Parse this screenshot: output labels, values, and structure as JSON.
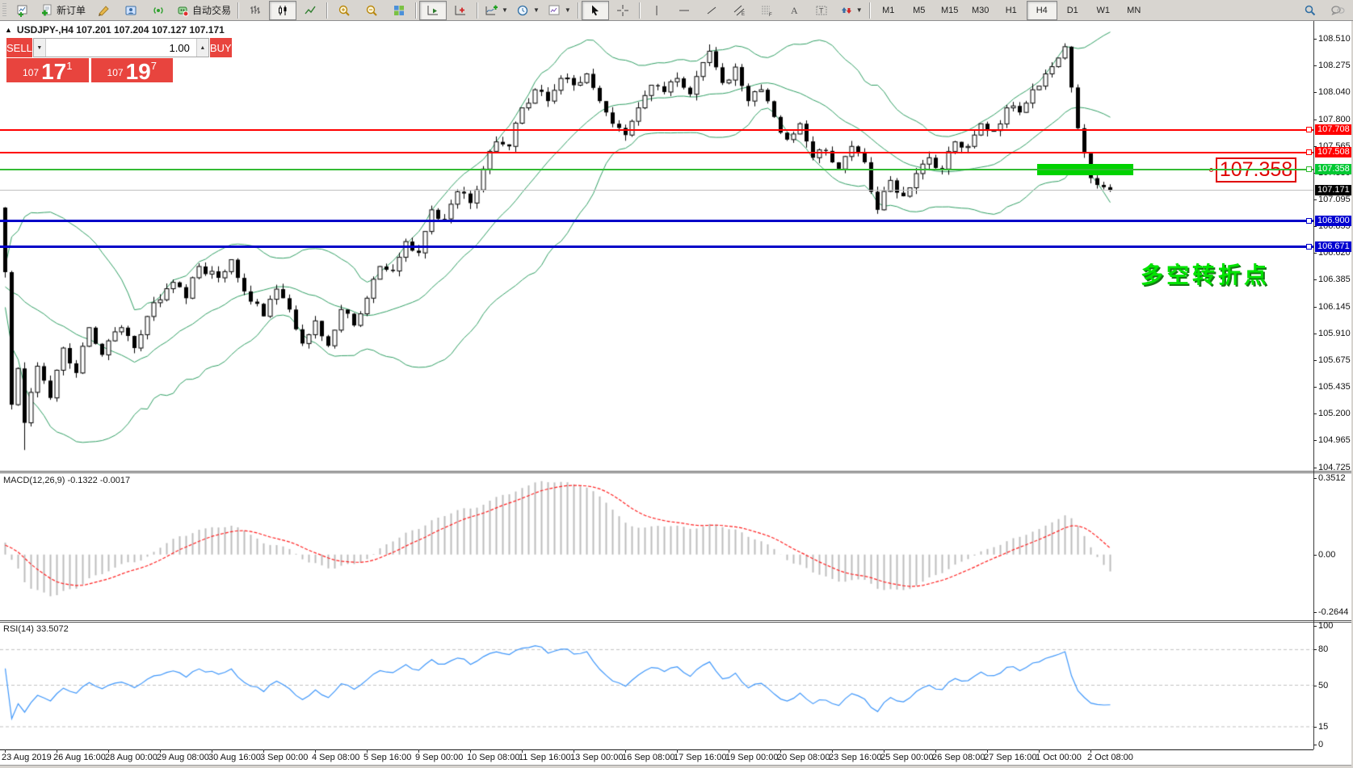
{
  "toolbar": {
    "new_order_label": "新订单",
    "autotrading_label": "自动交易",
    "timeframes": [
      "M1",
      "M5",
      "M15",
      "M30",
      "H1",
      "H4",
      "D1",
      "W1",
      "MN"
    ],
    "active_timeframe": "H4",
    "icons": [
      "new-chart-icon",
      "new-order-icon",
      "profiles-icon",
      "market-watch-icon",
      "signals-icon",
      "autotrading-icon",
      "bar-chart-icon",
      "candlestick-chart-icon",
      "line-chart-icon",
      "zoom-in-icon",
      "zoom-out-icon",
      "tile-windows-icon",
      "auto-scroll-icon",
      "chart-shift-icon",
      "indicators-icon",
      "periods-clock-icon",
      "templates-icon",
      "cursor-icon",
      "crosshair-icon",
      "vertical-line-icon",
      "horizontal-line-icon",
      "trendline-icon",
      "equidistant-channel-icon",
      "fibonacci-icon",
      "text-icon",
      "text-label-icon",
      "arrows-icon",
      "search-icon",
      "chat-icon"
    ]
  },
  "chart": {
    "title": "USDJPY-,H4  107.201 107.204 107.127 107.171",
    "symbol": "USDJPY-",
    "period": "H4"
  },
  "trade_panel": {
    "sell_label": "SELL",
    "buy_label": "BUY",
    "volume": "1.00",
    "sell_small": "107",
    "sell_big": "17",
    "sell_sup": "1",
    "buy_small": "107",
    "buy_big": "19",
    "buy_sup": "7"
  },
  "indicators": {
    "macd_label": "MACD(12,26,9) -0.1322 -0.0017",
    "rsi_label": "RSI(14) 33.5072"
  },
  "annotations": {
    "price_callout": "107.358",
    "cn_note": "多空转折点"
  },
  "levels": [
    {
      "price": 107.708,
      "label": "107.708",
      "color": "#ff0000",
      "line": "#ff0000",
      "thick": 2,
      "marker": true
    },
    {
      "price": 107.508,
      "label": "107.508",
      "color": "#ff0000",
      "line": "#ff0000",
      "thick": 2,
      "marker": true
    },
    {
      "price": 107.358,
      "label": "107.358",
      "color": "#00c832",
      "line": "#33bb33",
      "thick": 2,
      "marker": true
    },
    {
      "price": 107.171,
      "label": "107.171",
      "color": "#000000",
      "line": "#c0c0c0",
      "thick": 1,
      "marker": false
    },
    {
      "price": 106.9,
      "label": "106.900",
      "color": "#0000d0",
      "line": "#0000c8",
      "thick": 3,
      "marker": true
    },
    {
      "price": 106.671,
      "label": "106.671",
      "color": "#0000d0",
      "line": "#0000c8",
      "thick": 3,
      "marker": true
    }
  ],
  "axes": {
    "price_ticks": [
      "108.510",
      "108.275",
      "108.040",
      "107.800",
      "107.565",
      "107.330",
      "107.095",
      "106.855",
      "106.620",
      "106.385",
      "106.145",
      "105.910",
      "105.675",
      "105.435",
      "105.200",
      "104.965",
      "104.725"
    ],
    "macd_ticks": [
      {
        "label": "0.3512",
        "v": 0.3512
      },
      {
        "label": "0.00",
        "v": 0
      },
      {
        "label": "-0.2644",
        "v": -0.2644
      }
    ],
    "rsi_ticks": [
      {
        "label": "100",
        "v": 100
      },
      {
        "label": "80",
        "v": 80
      },
      {
        "label": "50",
        "v": 50
      },
      {
        "label": "15",
        "v": 15
      },
      {
        "label": "0",
        "v": 0
      }
    ],
    "dates": [
      "23 Aug 2019",
      "26 Aug 16:00",
      "28 Aug 00:00",
      "29 Aug 08:00",
      "30 Aug 16:00",
      "3 Sep 00:00",
      "4 Sep 08:00",
      "5 Sep 16:00",
      "9 Sep 00:00",
      "10 Sep 08:00",
      "11 Sep 16:00",
      "13 Sep 00:00",
      "16 Sep 08:00",
      "17 Sep 16:00",
      "19 Sep 00:00",
      "20 Sep 08:00",
      "23 Sep 16:00",
      "25 Sep 00:00",
      "26 Sep 08:00",
      "27 Sep 16:00",
      "1 Oct 00:00",
      "2 Oct 08:00"
    ]
  },
  "chart_data": {
    "type": "candlestick+indicators",
    "symbol": "USDJPY",
    "period": "H4",
    "ohlc_current": {
      "open": 107.201,
      "high": 107.204,
      "low": 107.127,
      "close": 107.171
    },
    "ylim": [
      104.725,
      108.51
    ],
    "bars_total": 172,
    "price_anchors": [
      [
        0,
        106.45
      ],
      [
        1,
        105.28
      ],
      [
        2,
        105.6
      ],
      [
        3,
        105.12
      ],
      [
        5,
        105.62
      ],
      [
        7,
        105.34
      ],
      [
        9,
        105.78
      ],
      [
        11,
        105.56
      ],
      [
        13,
        105.96
      ],
      [
        15,
        105.72
      ],
      [
        18,
        105.96
      ],
      [
        20,
        105.78
      ],
      [
        23,
        106.18
      ],
      [
        26,
        106.36
      ],
      [
        28,
        106.22
      ],
      [
        30,
        106.5
      ],
      [
        33,
        106.4
      ],
      [
        35,
        106.56
      ],
      [
        37,
        106.28
      ],
      [
        40,
        106.06
      ],
      [
        42,
        106.3
      ],
      [
        44,
        106.12
      ],
      [
        46,
        105.82
      ],
      [
        48,
        106.02
      ],
      [
        50,
        105.8
      ],
      [
        52,
        106.12
      ],
      [
        54,
        105.98
      ],
      [
        56,
        106.22
      ],
      [
        58,
        106.5
      ],
      [
        60,
        106.46
      ],
      [
        62,
        106.72
      ],
      [
        64,
        106.62
      ],
      [
        66,
        107.0
      ],
      [
        68,
        106.92
      ],
      [
        70,
        107.16
      ],
      [
        72,
        107.06
      ],
      [
        74,
        107.36
      ],
      [
        76,
        107.6
      ],
      [
        78,
        107.56
      ],
      [
        80,
        107.9
      ],
      [
        82,
        108.06
      ],
      [
        84,
        107.96
      ],
      [
        86,
        108.16
      ],
      [
        88,
        108.1
      ],
      [
        90,
        108.2
      ],
      [
        92,
        107.96
      ],
      [
        94,
        107.76
      ],
      [
        96,
        107.66
      ],
      [
        98,
        107.9
      ],
      [
        100,
        108.1
      ],
      [
        102,
        108.04
      ],
      [
        104,
        108.16
      ],
      [
        106,
        108.02
      ],
      [
        108,
        108.3
      ],
      [
        109,
        108.4
      ],
      [
        111,
        108.12
      ],
      [
        113,
        108.26
      ],
      [
        115,
        107.96
      ],
      [
        117,
        108.06
      ],
      [
        119,
        107.82
      ],
      [
        121,
        107.62
      ],
      [
        123,
        107.76
      ],
      [
        125,
        107.46
      ],
      [
        127,
        107.52
      ],
      [
        129,
        107.36
      ],
      [
        131,
        107.56
      ],
      [
        133,
        107.42
      ],
      [
        134,
        107.16
      ],
      [
        135,
        107.0
      ],
      [
        137,
        107.26
      ],
      [
        139,
        107.12
      ],
      [
        141,
        107.32
      ],
      [
        143,
        107.46
      ],
      [
        145,
        107.36
      ],
      [
        147,
        107.6
      ],
      [
        149,
        107.56
      ],
      [
        151,
        107.76
      ],
      [
        153,
        107.7
      ],
      [
        155,
        107.9
      ],
      [
        157,
        107.86
      ],
      [
        159,
        108.06
      ],
      [
        161,
        108.2
      ],
      [
        163,
        108.34
      ],
      [
        164,
        108.44
      ],
      [
        165,
        108.08
      ],
      [
        166,
        107.72
      ],
      [
        167,
        107.5
      ],
      [
        168,
        107.28
      ],
      [
        169,
        107.22
      ],
      [
        170,
        107.2
      ],
      [
        171,
        107.171
      ]
    ],
    "open_overrides": {
      "0": 107.02
    },
    "low_overrides": {
      "3": 104.88
    },
    "high_overrides": {
      "109": 108.46,
      "164": 108.47
    },
    "bollinger": {
      "period": 20,
      "deviation": 2,
      "color": "#2f9e63"
    },
    "macd": {
      "fast": 12,
      "slow": 26,
      "signal": 9,
      "current_main": -0.1322,
      "current_signal": -0.0017,
      "range": [
        -0.2644,
        0.3512
      ],
      "hist_color": "#bdbdbd",
      "signal_color": "#ff2020"
    },
    "rsi": {
      "period": 14,
      "current": 33.5072,
      "levels": [
        80,
        50,
        15
      ],
      "range": [
        0,
        100
      ],
      "color": "#3e96fa"
    }
  }
}
